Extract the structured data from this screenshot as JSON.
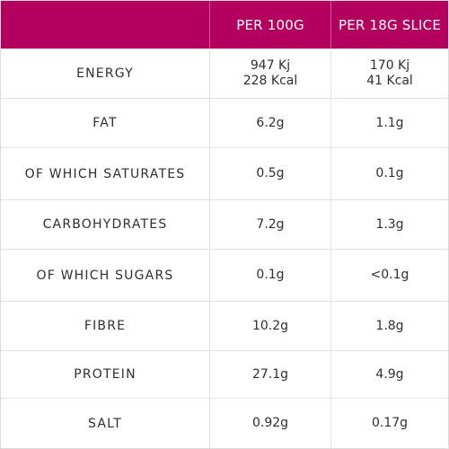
{
  "colors": {
    "header_bg": "#b3005e",
    "header_text": "#ffffff",
    "body_text": "#2f2f2f",
    "grid": "#e2e2e2"
  },
  "header": {
    "col1": "",
    "col2": "PER 100G",
    "col3": "PER 18G SLICE"
  },
  "rows": [
    {
      "label": "ENERGY",
      "per100": [
        "947 Kj",
        "228 Kcal"
      ],
      "perSlice": [
        "170 Kj",
        "41 Kcal"
      ]
    },
    {
      "label": "FAT",
      "per100": [
        "6.2g"
      ],
      "perSlice": [
        "1.1g"
      ]
    },
    {
      "label": "OF WHICH SATURATES",
      "per100": [
        "0.5g"
      ],
      "perSlice": [
        "0.1g"
      ]
    },
    {
      "label": "CARBOHYDRATES",
      "per100": [
        "7.2g"
      ],
      "perSlice": [
        "1.3g"
      ]
    },
    {
      "label": "OF WHICH SUGARS",
      "per100": [
        "0.1g"
      ],
      "perSlice": [
        "<0.1g"
      ]
    },
    {
      "label": "FIBRE",
      "per100": [
        "10.2g"
      ],
      "perSlice": [
        "1.8g"
      ]
    },
    {
      "label": "PROTEIN",
      "per100": [
        "27.1g"
      ],
      "perSlice": [
        "4.9g"
      ]
    },
    {
      "label": "SALT",
      "per100": [
        "0.92g"
      ],
      "perSlice": [
        "0.17g"
      ]
    }
  ]
}
